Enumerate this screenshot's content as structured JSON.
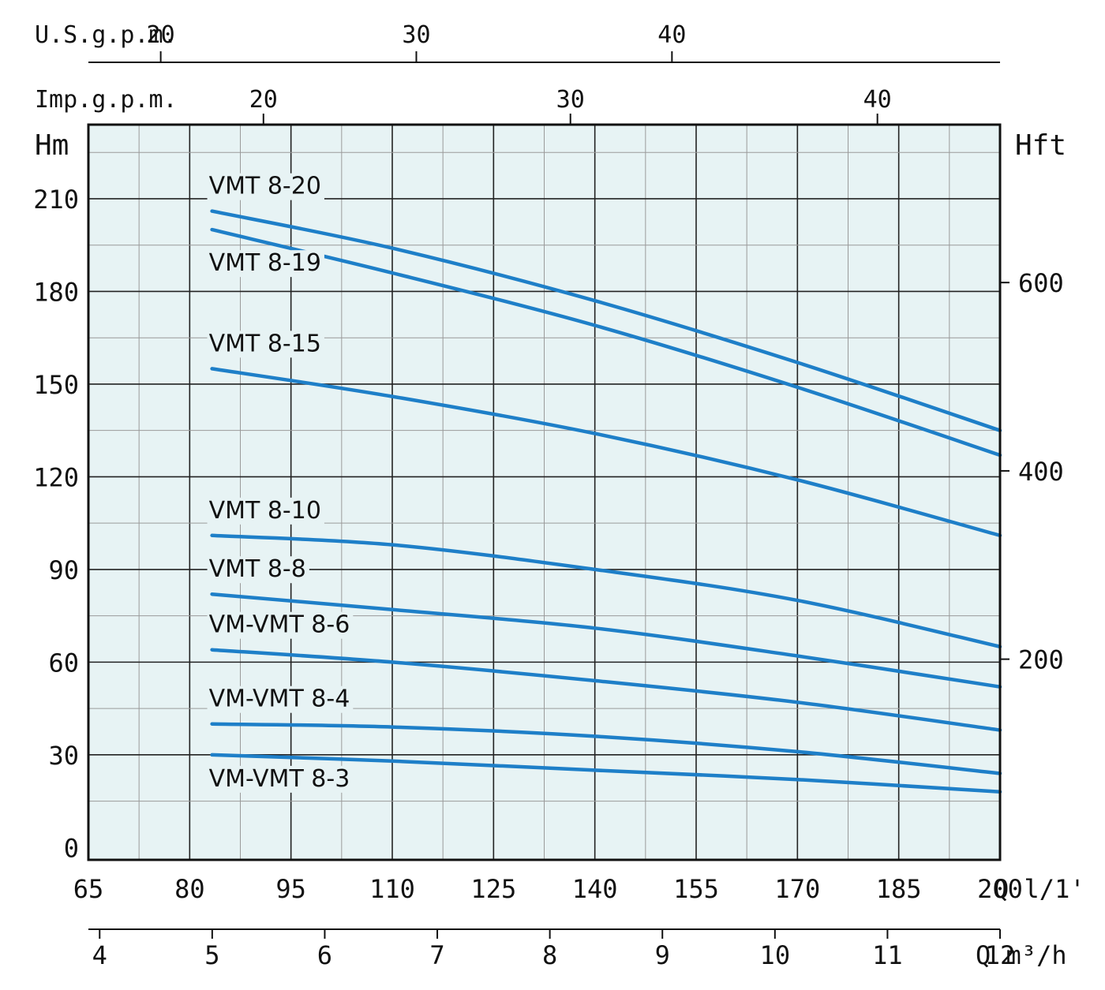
{
  "chart_data": {
    "type": "line",
    "colors": {
      "background": "#e7f3f4",
      "grid": "#9a9a9a",
      "grid_major": "#222222",
      "line": "#1e7fc8",
      "frame": "#111111"
    },
    "grid": true,
    "axes": {
      "y_left": {
        "label": "Hm",
        "ticks": [
          0,
          30,
          60,
          90,
          120,
          150,
          180,
          210
        ],
        "ylim": [
          -4,
          234
        ]
      },
      "y_right": {
        "label": "Hft",
        "ticks": [
          "200",
          "400",
          "600"
        ]
      },
      "x_bottom_lmin": {
        "label": "Q l/1'",
        "ticks": [
          "65",
          "80",
          "95",
          "110",
          "125",
          "140",
          "155",
          "170",
          "185",
          "200"
        ],
        "xlim": [
          65,
          200
        ]
      },
      "x_bottom_m3h": {
        "label": "Q m³/h",
        "ticks": [
          "4",
          "5",
          "6",
          "7",
          "8",
          "9",
          "10",
          "11",
          "12"
        ]
      },
      "x_top_usgpm": {
        "label": "U.S.g.p.m.",
        "ticks": [
          "20",
          "30",
          "40"
        ]
      },
      "x_top_impgpm": {
        "label": "Imp.g.p.m.",
        "ticks": [
          "20",
          "30",
          "40"
        ]
      }
    },
    "series": [
      {
        "name": "VMT 8-20",
        "points": [
          [
            83.3,
            206
          ],
          [
            110,
            194
          ],
          [
            140,
            177
          ],
          [
            170,
            157
          ],
          [
            200,
            135
          ]
        ]
      },
      {
        "name": "VMT 8-19",
        "points": [
          [
            83.3,
            200
          ],
          [
            110,
            186
          ],
          [
            140,
            169
          ],
          [
            170,
            149
          ],
          [
            200,
            127
          ]
        ]
      },
      {
        "name": "VMT 8-15",
        "points": [
          [
            83.3,
            155
          ],
          [
            110,
            146
          ],
          [
            140,
            134
          ],
          [
            170,
            119
          ],
          [
            200,
            101
          ]
        ]
      },
      {
        "name": "VMT 8-10",
        "points": [
          [
            83.3,
            101
          ],
          [
            110,
            98
          ],
          [
            140,
            90
          ],
          [
            170,
            80
          ],
          [
            200,
            65
          ]
        ]
      },
      {
        "name": "VMT 8-8",
        "points": [
          [
            83.3,
            82
          ],
          [
            110,
            77
          ],
          [
            140,
            71
          ],
          [
            170,
            62
          ],
          [
            200,
            52
          ]
        ]
      },
      {
        "name": "VM-VMT 8-6",
        "points": [
          [
            83.3,
            64
          ],
          [
            110,
            60
          ],
          [
            140,
            54
          ],
          [
            170,
            47
          ],
          [
            200,
            38
          ]
        ]
      },
      {
        "name": "VM-VMT 8-4",
        "points": [
          [
            83.3,
            40
          ],
          [
            110,
            39
          ],
          [
            140,
            36
          ],
          [
            170,
            31
          ],
          [
            200,
            24
          ]
        ]
      },
      {
        "name": "VM-VMT 8-3",
        "points": [
          [
            83.3,
            30
          ],
          [
            110,
            28
          ],
          [
            140,
            25
          ],
          [
            170,
            22
          ],
          [
            200,
            18
          ]
        ]
      }
    ]
  }
}
